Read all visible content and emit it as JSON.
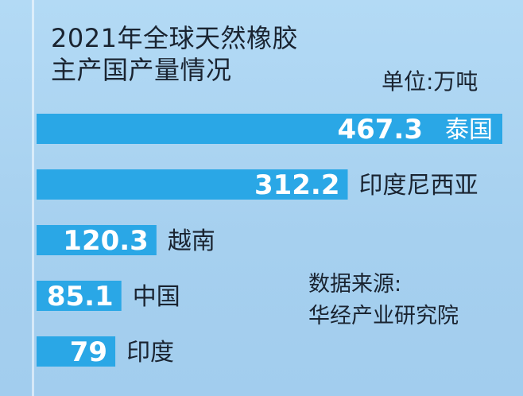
{
  "title": "2021年全球天然橡胶\n主产国产量情况",
  "unit_label": "单位:万吨",
  "source_label": "数据来源:\n华经产业研究院",
  "colors": {
    "bar": "#2aa7e6",
    "bar_label": "#ffffff",
    "category_text": "#1a2431",
    "highlight_category_text": "#ffffff"
  },
  "chart_data": {
    "type": "bar",
    "orientation": "horizontal",
    "categories": [
      "泰国",
      "印度尼西亚",
      "越南",
      "中国",
      "印度"
    ],
    "values": [
      467.3,
      312.2,
      120.3,
      85.1,
      79
    ],
    "value_labels": [
      "467.3",
      "312.2",
      "120.3",
      "85.1",
      "79"
    ],
    "title": "2021年全球天然橡胶主产国产量情况",
    "unit": "单位:万吨",
    "grid": false,
    "legend": "none"
  }
}
